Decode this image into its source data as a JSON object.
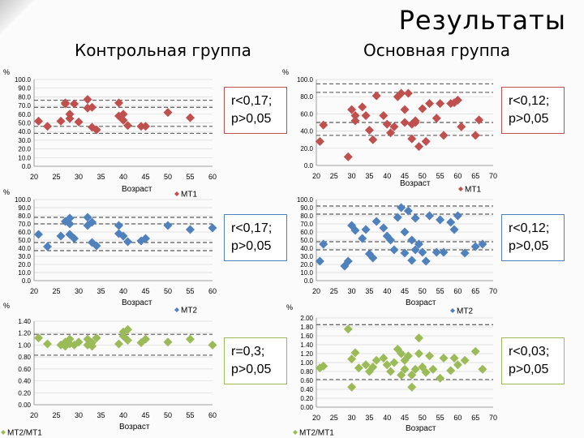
{
  "title": "Результаты",
  "groups": {
    "control": "Контрольная группа",
    "main": "Основная группа"
  },
  "colors": {
    "mt1": "#c0504d",
    "mt2": "#4f81bd",
    "ratio": "#9bbb59"
  },
  "chart_data": [
    {
      "type": "scatter",
      "group": "control",
      "ylabel": "%",
      "xlabel": "Возраст",
      "legend": "МТ1",
      "xlim": [
        20,
        60
      ],
      "ylim": [
        0,
        100
      ],
      "color": "#c0504d",
      "xticks": [
        20,
        25,
        30,
        35,
        40,
        45,
        50,
        55,
        60
      ],
      "yticks": [
        "0.0",
        "10.0",
        "20.0",
        "30.0",
        "40.0",
        "50.0",
        "60.0",
        "70.0",
        "80.0",
        "90.0",
        "100.0"
      ],
      "dashed": [
        76,
        68,
        46,
        38
      ],
      "points": [
        [
          21,
          52
        ],
        [
          23,
          46
        ],
        [
          26,
          52
        ],
        [
          27,
          72
        ],
        [
          27,
          73
        ],
        [
          28,
          60
        ],
        [
          29,
          72
        ],
        [
          28,
          55
        ],
        [
          30,
          51
        ],
        [
          32,
          77
        ],
        [
          32,
          67
        ],
        [
          33,
          45
        ],
        [
          33,
          68
        ],
        [
          34,
          42
        ],
        [
          39,
          73
        ],
        [
          39,
          58
        ],
        [
          40,
          53
        ],
        [
          40,
          60
        ],
        [
          41,
          47
        ],
        [
          44,
          46
        ],
        [
          45,
          46
        ],
        [
          50,
          62
        ],
        [
          55,
          56
        ]
      ],
      "stat": "r<0,17;\np>0,05"
    },
    {
      "type": "scatter",
      "group": "main",
      "ylabel": "%",
      "xlabel": "Возраст",
      "legend": "МТ1",
      "xlim": [
        20,
        70
      ],
      "ylim": [
        0,
        100
      ],
      "color": "#c0504d",
      "xticks": [
        20,
        25,
        30,
        35,
        40,
        45,
        50,
        55,
        60,
        65,
        70
      ],
      "yticks": [
        "0.0",
        "20.0",
        "40.0",
        "60.0",
        "80.0",
        "100.0"
      ],
      "dashed": [
        95,
        85,
        50,
        35
      ],
      "points": [
        [
          21,
          28
        ],
        [
          22,
          47
        ],
        [
          29,
          10
        ],
        [
          30,
          65
        ],
        [
          31,
          58
        ],
        [
          31,
          52
        ],
        [
          33,
          68
        ],
        [
          34,
          58
        ],
        [
          35,
          41
        ],
        [
          36,
          30
        ],
        [
          37,
          81
        ],
        [
          39,
          58
        ],
        [
          40,
          48
        ],
        [
          41,
          38
        ],
        [
          42,
          45
        ],
        [
          43,
          80
        ],
        [
          44,
          84
        ],
        [
          45,
          65
        ],
        [
          45,
          50
        ],
        [
          46,
          84
        ],
        [
          47,
          48
        ],
        [
          47,
          31
        ],
        [
          48,
          52
        ],
        [
          48,
          50
        ],
        [
          49,
          22
        ],
        [
          50,
          66
        ],
        [
          51,
          28
        ],
        [
          52,
          72
        ],
        [
          54,
          55
        ],
        [
          55,
          72
        ],
        [
          56,
          35
        ],
        [
          58,
          72
        ],
        [
          59,
          73
        ],
        [
          60,
          76
        ],
        [
          61,
          45
        ],
        [
          65,
          35
        ],
        [
          66,
          53
        ]
      ],
      "stat": "r<0,12;\np>0,05"
    },
    {
      "type": "scatter",
      "group": "control",
      "ylabel": "%",
      "xlabel": "Возраст",
      "legend": "МТ2",
      "xlim": [
        20,
        60
      ],
      "ylim": [
        0,
        100
      ],
      "color": "#4f81bd",
      "xticks": [
        20,
        25,
        30,
        35,
        40,
        45,
        50,
        55,
        60
      ],
      "yticks": [
        "0.0",
        "10.0",
        "20.0",
        "30.0",
        "40.0",
        "50.0",
        "60.0",
        "70.0",
        "80.0",
        "90.0",
        "100.0"
      ],
      "dashed": [
        78,
        70,
        47,
        37
      ],
      "points": [
        [
          21,
          57
        ],
        [
          23,
          42
        ],
        [
          26,
          55
        ],
        [
          27,
          73
        ],
        [
          28,
          77
        ],
        [
          28,
          57
        ],
        [
          29,
          52
        ],
        [
          28,
          70
        ],
        [
          32,
          78
        ],
        [
          32,
          68
        ],
        [
          33,
          47
        ],
        [
          33,
          72
        ],
        [
          34,
          43
        ],
        [
          39,
          68
        ],
        [
          39,
          58
        ],
        [
          40,
          55
        ],
        [
          41,
          48
        ],
        [
          44,
          49
        ],
        [
          45,
          52
        ],
        [
          50,
          68
        ],
        [
          55,
          63
        ],
        [
          60,
          65
        ]
      ],
      "stat": "r<0,17;\np>0,05"
    },
    {
      "type": "scatter",
      "group": "main",
      "ylabel": "",
      "xlabel": "Возраст",
      "legend": "МТ2",
      "xlim": [
        20,
        70
      ],
      "ylim": [
        0,
        100
      ],
      "color": "#4f81bd",
      "xticks": [
        20,
        25,
        30,
        35,
        40,
        45,
        50,
        55,
        60,
        65,
        70
      ],
      "yticks": [
        "0.0",
        "10.0",
        "20.0",
        "30.0",
        "40.0",
        "50.0",
        "60.0",
        "70.0",
        "80.0",
        "90.0",
        "100.0"
      ],
      "dashed": [
        92,
        82,
        48,
        38
      ],
      "points": [
        [
          21,
          24
        ],
        [
          22,
          45
        ],
        [
          28,
          18
        ],
        [
          29,
          24
        ],
        [
          30,
          68
        ],
        [
          31,
          62
        ],
        [
          33,
          52
        ],
        [
          34,
          63
        ],
        [
          35,
          33
        ],
        [
          36,
          28
        ],
        [
          37,
          73
        ],
        [
          39,
          65
        ],
        [
          40,
          55
        ],
        [
          41,
          50
        ],
        [
          42,
          38
        ],
        [
          43,
          78
        ],
        [
          44,
          90
        ],
        [
          45,
          34
        ],
        [
          45,
          60
        ],
        [
          46,
          86
        ],
        [
          47,
          50
        ],
        [
          47,
          25
        ],
        [
          48,
          38
        ],
        [
          48,
          77
        ],
        [
          49,
          45
        ],
        [
          50,
          35
        ],
        [
          51,
          24
        ],
        [
          52,
          80
        ],
        [
          54,
          35
        ],
        [
          55,
          75
        ],
        [
          56,
          35
        ],
        [
          58,
          72
        ],
        [
          59,
          63
        ],
        [
          60,
          80
        ],
        [
          62,
          34
        ],
        [
          65,
          42
        ],
        [
          67,
          45
        ]
      ],
      "stat": "r<0,12;\np>0,05"
    },
    {
      "type": "scatter",
      "group": "control",
      "ylabel": "%",
      "xlabel": "Возраст",
      "legend": "МТ2/МТ1",
      "xlim": [
        20,
        60
      ],
      "ylim": [
        0,
        1.4
      ],
      "color": "#9bbb59",
      "xticks": [
        20,
        25,
        30,
        35,
        40,
        45,
        50,
        55,
        60
      ],
      "yticks": [
        "0.00",
        "0.20",
        "0.40",
        "0.60",
        "0.80",
        "1.00",
        "1.20",
        "1.40"
      ],
      "dashed": [
        1.18,
        0.83
      ],
      "points": [
        [
          21,
          1.12
        ],
        [
          23,
          1.02
        ],
        [
          26,
          1.0
        ],
        [
          27,
          1.05
        ],
        [
          27,
          0.98
        ],
        [
          28,
          1.1
        ],
        [
          28,
          1.02
        ],
        [
          29,
          1.0
        ],
        [
          30,
          1.05
        ],
        [
          32,
          1.1
        ],
        [
          32,
          1.0
        ],
        [
          33,
          1.04
        ],
        [
          33,
          0.98
        ],
        [
          34,
          1.12
        ],
        [
          39,
          1.02
        ],
        [
          40,
          1.15
        ],
        [
          40,
          1.22
        ],
        [
          41,
          1.26
        ],
        [
          41,
          1.08
        ],
        [
          44,
          1.04
        ],
        [
          45,
          1.1
        ],
        [
          50,
          1.05
        ],
        [
          55,
          1.1
        ],
        [
          60,
          1.0
        ]
      ],
      "stat": "r=0,3;\np>0,05"
    },
    {
      "type": "scatter",
      "group": "main",
      "ylabel": "%",
      "xlabel": "Возраст",
      "legend": "МТ2/МТ1",
      "xlim": [
        20,
        70
      ],
      "ylim": [
        0,
        2.0
      ],
      "color": "#9bbb59",
      "xticks": [
        20,
        25,
        30,
        35,
        40,
        45,
        50,
        55,
        60,
        65,
        70
      ],
      "yticks": [
        "0.00",
        "0.20",
        "0.40",
        "0.60",
        "0.80",
        "1.00",
        "1.20",
        "1.40",
        "1.60",
        "1.80",
        "2.00"
      ],
      "dashed": [
        1.85,
        0.62
      ],
      "points": [
        [
          21,
          0.88
        ],
        [
          22,
          0.92
        ],
        [
          29,
          1.75
        ],
        [
          30,
          0.45
        ],
        [
          30,
          1.08
        ],
        [
          31,
          1.22
        ],
        [
          32,
          0.88
        ],
        [
          34,
          0.95
        ],
        [
          35,
          0.8
        ],
        [
          36,
          0.9
        ],
        [
          37,
          1.05
        ],
        [
          39,
          1.1
        ],
        [
          40,
          0.95
        ],
        [
          41,
          0.8
        ],
        [
          42,
          1.0
        ],
        [
          43,
          1.3
        ],
        [
          44,
          1.2
        ],
        [
          44,
          0.72
        ],
        [
          45,
          1.05
        ],
        [
          45,
          0.85
        ],
        [
          46,
          1.15
        ],
        [
          47,
          0.72
        ],
        [
          47,
          0.45
        ],
        [
          48,
          0.85
        ],
        [
          49,
          1.2
        ],
        [
          49,
          1.55
        ],
        [
          50,
          0.9
        ],
        [
          51,
          0.78
        ],
        [
          52,
          1.15
        ],
        [
          53,
          0.85
        ],
        [
          55,
          0.65
        ],
        [
          56,
          1.1
        ],
        [
          58,
          0.82
        ],
        [
          59,
          1.1
        ],
        [
          60,
          0.95
        ],
        [
          62,
          1.05
        ],
        [
          65,
          1.25
        ],
        [
          67,
          0.85
        ]
      ],
      "stat": "r<0,03;\np>0,05"
    }
  ]
}
